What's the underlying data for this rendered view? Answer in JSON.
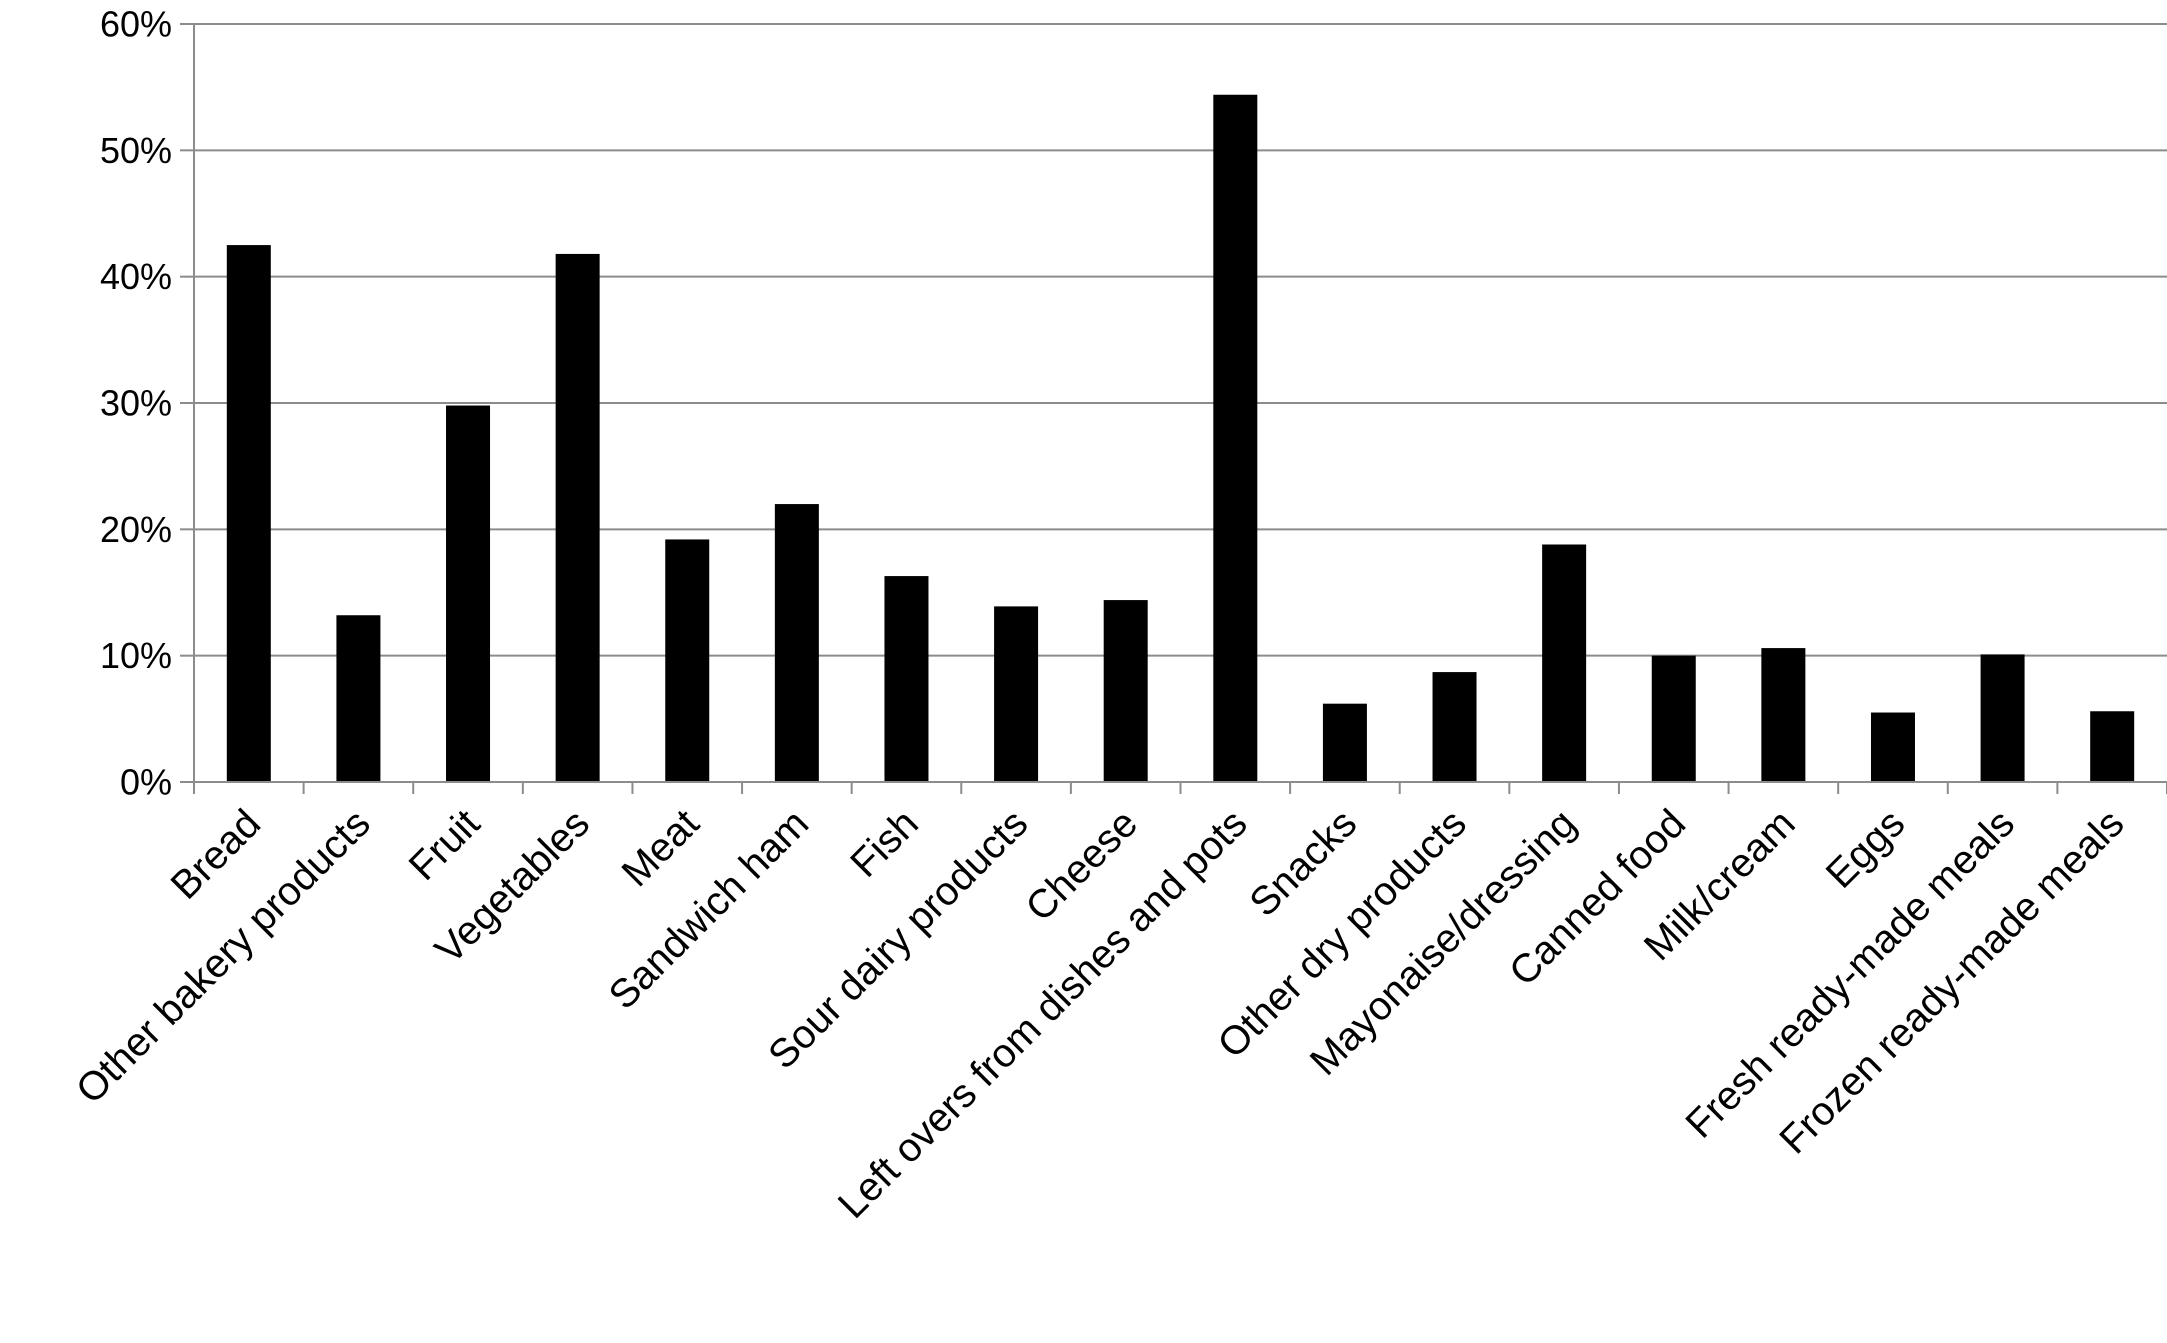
{
  "chart_data": {
    "type": "bar",
    "categories": [
      "Bread",
      "Other bakery products",
      "Fruit",
      "Vegetables",
      "Meat",
      "Sandwich ham",
      "Fish",
      "Sour dairy products",
      "Cheese",
      "Left overs from dishes and pots",
      "Snacks",
      "Other dry products",
      "Mayonaise/dressing",
      "Canned food",
      "Milk/cream",
      "Eggs",
      "Fresh ready-made meals",
      "Frozen ready-made meals"
    ],
    "values": [
      42.5,
      13.2,
      29.8,
      41.8,
      19.2,
      22.0,
      16.3,
      13.9,
      14.4,
      54.4,
      6.2,
      8.7,
      18.8,
      10.0,
      10.6,
      5.5,
      10.1,
      5.6
    ],
    "ylim": [
      0,
      60
    ],
    "yticks": [
      "0%",
      "10%",
      "20%",
      "30%",
      "40%",
      "50%",
      "60%"
    ],
    "title": "",
    "xlabel": "",
    "ylabel": "",
    "grid": true,
    "colors": {
      "bar": "#000000",
      "grid": "#8c8c8c",
      "axis": "#8c8c8c"
    }
  }
}
